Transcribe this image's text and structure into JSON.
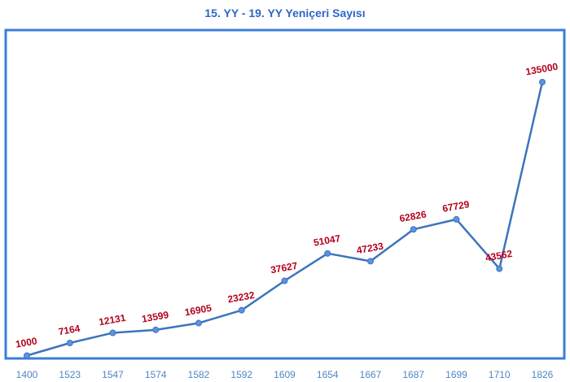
{
  "chart_data": {
    "type": "line",
    "title": "15. YY - 19. YY Yeniçeri Sayısı",
    "categories": [
      "1400",
      "1523",
      "1547",
      "1574",
      "1582",
      "1592",
      "1609",
      "1654",
      "1667",
      "1687",
      "1699",
      "1710",
      "1826"
    ],
    "series": [
      {
        "values": [
          1000,
          7164,
          12131,
          13599,
          16905,
          23232,
          37627,
          51047,
          47233,
          62826,
          67729,
          43562,
          135000
        ]
      }
    ],
    "ylim": [
      0,
      135000
    ],
    "grid": false,
    "legend": "none",
    "colors": {
      "line": "#3C74BC",
      "marker": "#5B93E0",
      "label": "#B3001B",
      "frame": "#3B7DD8",
      "tick": "#4F86C6",
      "title": "#2E66C7"
    }
  }
}
